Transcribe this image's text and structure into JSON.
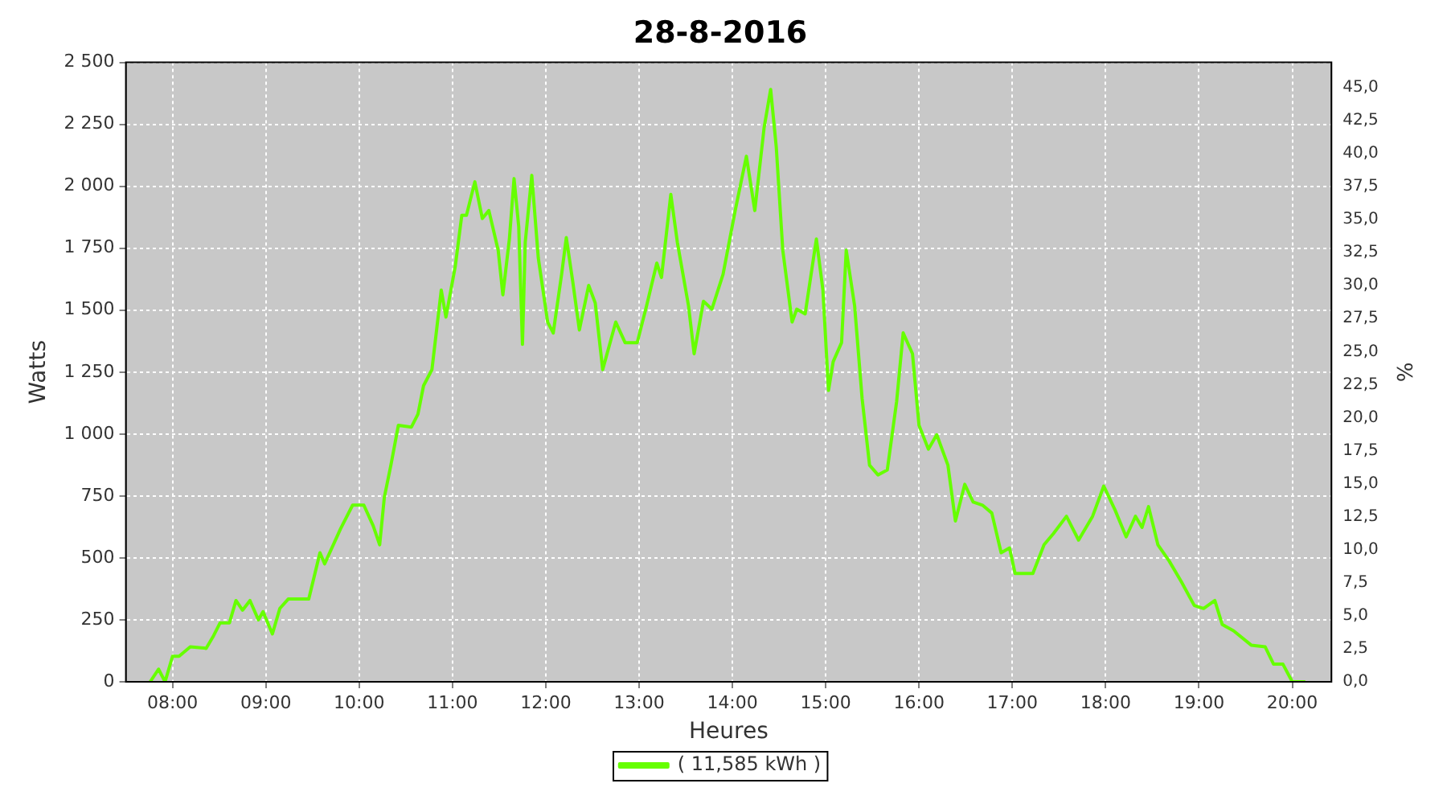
{
  "chart_data": {
    "type": "line",
    "title": "28-8-2016",
    "xlabel": "Heures",
    "ylabel": "Watts",
    "y2label": "%",
    "xlim": [
      7.5,
      20.42
    ],
    "xticks": [
      {
        "value": 8,
        "label": "08:00"
      },
      {
        "value": 9,
        "label": "09:00"
      },
      {
        "value": 10,
        "label": "10:00"
      },
      {
        "value": 11,
        "label": "11:00"
      },
      {
        "value": 12,
        "label": "12:00"
      },
      {
        "value": 13,
        "label": "13:00"
      },
      {
        "value": 14,
        "label": "14:00"
      },
      {
        "value": 15,
        "label": "15:00"
      },
      {
        "value": 16,
        "label": "16:00"
      },
      {
        "value": 17,
        "label": "17:00"
      },
      {
        "value": 18,
        "label": "18:00"
      },
      {
        "value": 19,
        "label": "19:00"
      },
      {
        "value": 20,
        "label": "20:00"
      }
    ],
    "ylim": [
      0,
      2500
    ],
    "yticks": [
      0,
      250,
      500,
      750,
      {
        "value": 1000,
        "label": "1 000"
      },
      {
        "value": 1250,
        "label": "1 250"
      },
      {
        "value": 1500,
        "label": "1 500"
      },
      {
        "value": 1750,
        "label": "1 750"
      },
      {
        "value": 2000,
        "label": "2 000"
      },
      {
        "value": 2250,
        "label": "2 250"
      },
      {
        "value": 2500,
        "label": "2 500"
      }
    ],
    "y2lim": [
      0,
      46.9
    ],
    "y2ticks": [
      {
        "value": 0,
        "label": "0,0"
      },
      {
        "value": 2.5,
        "label": "2,5"
      },
      {
        "value": 5,
        "label": "5,0"
      },
      {
        "value": 7.5,
        "label": "7,5"
      },
      {
        "value": 10,
        "label": "10,0"
      },
      {
        "value": 12.5,
        "label": "12,5"
      },
      {
        "value": 15,
        "label": "15,0"
      },
      {
        "value": 17.5,
        "label": "17,5"
      },
      {
        "value": 20,
        "label": "20,0"
      },
      {
        "value": 22.5,
        "label": "22,5"
      },
      {
        "value": 25,
        "label": "25,0"
      },
      {
        "value": 27.5,
        "label": "27,5"
      },
      {
        "value": 30,
        "label": "30,0"
      },
      {
        "value": 32.5,
        "label": "32,5"
      },
      {
        "value": 35,
        "label": "35,0"
      },
      {
        "value": 37.5,
        "label": "37,5"
      },
      {
        "value": 40,
        "label": "40,0"
      },
      {
        "value": 42.5,
        "label": "42,5"
      },
      {
        "value": 45,
        "label": "45,0"
      }
    ],
    "grid": true,
    "legend": "bottom",
    "marker": "none",
    "line_style": "solid",
    "series": [
      {
        "name": "( 11,585 kWh )",
        "color": "#66ff00",
        "x": [
          7.76,
          7.85,
          7.92,
          8.0,
          8.07,
          8.19,
          8.36,
          8.44,
          8.51,
          8.61,
          8.68,
          8.75,
          8.83,
          8.92,
          8.97,
          9.07,
          9.15,
          9.24,
          9.46,
          9.58,
          9.63,
          9.8,
          9.93,
          10.05,
          10.15,
          10.22,
          10.27,
          10.34,
          10.42,
          10.56,
          10.63,
          10.69,
          10.78,
          10.88,
          10.93,
          11.03,
          11.1,
          11.15,
          11.24,
          11.32,
          11.39,
          11.49,
          11.54,
          11.61,
          11.66,
          11.71,
          11.75,
          11.78,
          11.85,
          11.92,
          12.02,
          12.08,
          12.17,
          12.22,
          12.29,
          12.36,
          12.46,
          12.53,
          12.61,
          12.75,
          12.85,
          12.98,
          13.08,
          13.19,
          13.24,
          13.34,
          13.41,
          13.53,
          13.59,
          13.69,
          13.78,
          13.9,
          14.03,
          14.15,
          14.24,
          14.34,
          14.41,
          14.47,
          14.54,
          14.64,
          14.69,
          14.78,
          14.9,
          14.97,
          15.03,
          15.08,
          15.17,
          15.22,
          15.31,
          15.39,
          15.47,
          15.56,
          15.66,
          15.76,
          15.83,
          15.93,
          16.0,
          16.1,
          16.19,
          16.31,
          16.39,
          16.49,
          16.58,
          16.68,
          16.78,
          16.88,
          16.97,
          17.03,
          17.22,
          17.34,
          17.44,
          17.58,
          17.71,
          17.86,
          17.98,
          18.1,
          18.22,
          18.32,
          18.39,
          18.46,
          18.56,
          18.68,
          18.81,
          18.95,
          19.05,
          19.17,
          19.25,
          19.37,
          19.56,
          19.71,
          19.8,
          19.9,
          20.0,
          20.14
        ],
        "values": [
          0,
          51,
          0,
          103,
          103,
          141,
          135,
          186,
          238,
          238,
          328,
          289,
          328,
          250,
          283,
          193,
          296,
          334,
          334,
          521,
          476,
          617,
          713,
          713,
          630,
          553,
          745,
          874,
          1035,
          1028,
          1080,
          1195,
          1260,
          1581,
          1472,
          1677,
          1883,
          1883,
          2018,
          1870,
          1902,
          1742,
          1562,
          1787,
          2031,
          1838,
          1362,
          1774,
          2044,
          1710,
          1452,
          1408,
          1645,
          1793,
          1613,
          1420,
          1600,
          1529,
          1260,
          1452,
          1369,
          1369,
          1517,
          1690,
          1632,
          1967,
          1774,
          1517,
          1324,
          1536,
          1504,
          1645,
          1902,
          2121,
          1902,
          2237,
          2391,
          2159,
          1742,
          1452,
          1504,
          1485,
          1787,
          1581,
          1176,
          1292,
          1369,
          1742,
          1517,
          1144,
          874,
          835,
          855,
          1131,
          1408,
          1324,
          1035,
          939,
          997,
          874,
          649,
          797,
          726,
          713,
          681,
          521,
          540,
          437,
          437,
          553,
          598,
          668,
          572,
          668,
          790,
          694,
          585,
          668,
          623,
          707,
          553,
          488,
          405,
          308,
          296,
          328,
          231,
          206,
          148,
          141,
          71,
          71,
          0,
          0
        ]
      }
    ]
  }
}
